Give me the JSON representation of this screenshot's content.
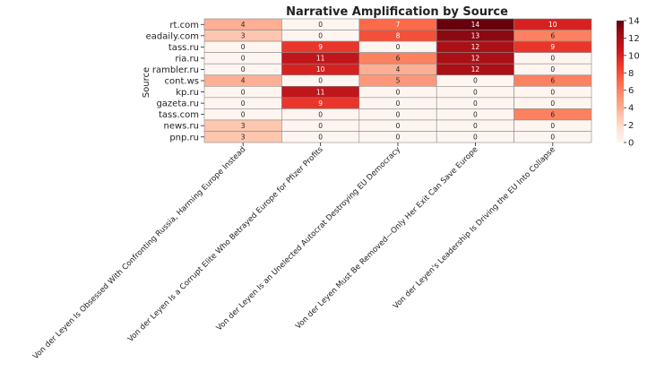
{
  "chart_data": {
    "type": "heatmap",
    "title": "Narrative Amplification by Source",
    "ylabel": "Source",
    "xlabel": "",
    "rows": [
      "rt.com",
      "eadaily.com",
      "tass.ru",
      "ria.ru",
      "rambler.ru",
      "cont.ws",
      "kp.ru",
      "gazeta.ru",
      "tass.com",
      "news.ru",
      "pnp.ru"
    ],
    "columns": [
      "Von der Leyen Is Obsessed With Confronting Russia, Harming Europe Instead",
      "Von der Leyen Is a Corrupt Elite Who Betrayed Europe for Pfizer Profits",
      "Von der Leyen Is an Unelected Autocrat Destroying EU Democracy",
      "Von der Leyen Must Be Removed—Only Her Exit Can Save Europe",
      "Von der Leyen's Leadership Is Driving the EU Into Collapse"
    ],
    "values": [
      [
        4,
        0,
        7,
        14,
        10
      ],
      [
        3,
        0,
        8,
        13,
        6
      ],
      [
        0,
        9,
        0,
        12,
        9
      ],
      [
        0,
        11,
        6,
        12,
        0
      ],
      [
        0,
        10,
        4,
        12,
        0
      ],
      [
        4,
        0,
        5,
        0,
        6
      ],
      [
        0,
        11,
        0,
        0,
        0
      ],
      [
        0,
        9,
        0,
        0,
        0
      ],
      [
        0,
        0,
        0,
        0,
        6
      ],
      [
        3,
        0,
        0,
        0,
        0
      ],
      [
        3,
        0,
        0,
        0,
        0
      ]
    ],
    "colorbar": {
      "min": 0,
      "max": 14,
      "ticks": [
        0,
        2,
        4,
        6,
        8,
        10,
        12,
        14
      ],
      "colormap": "Reds"
    },
    "grid": true
  }
}
